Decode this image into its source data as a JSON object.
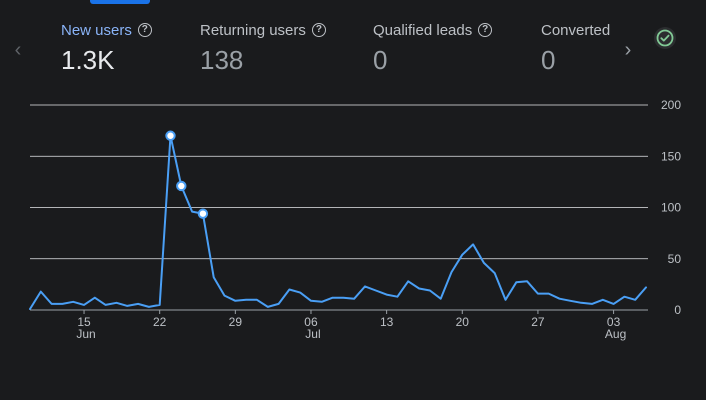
{
  "metrics": [
    {
      "label": "New users",
      "value": "1.3K",
      "active": true
    },
    {
      "label": "Returning users",
      "value": "138",
      "active": false
    },
    {
      "label": "Qualified leads",
      "value": "0",
      "active": false
    },
    {
      "label": "Converted",
      "value": "0",
      "active": false
    }
  ],
  "icons": {
    "prev": "chevron-left-icon",
    "next": "chevron-right-icon",
    "help": "help-circle-icon",
    "status": "check-circle-icon"
  },
  "colors": {
    "accent": "#1a73e8",
    "line": "#4a9ff5",
    "status_green": "#81c995"
  },
  "chart_data": {
    "type": "line",
    "x_start": "Jun 10",
    "x_end": "Aug 05",
    "x_tick_labels": [
      {
        "day": "15",
        "month": "Jun"
      },
      {
        "day": "22",
        "month": ""
      },
      {
        "day": "29",
        "month": ""
      },
      {
        "day": "06",
        "month": "Jul"
      },
      {
        "day": "13",
        "month": ""
      },
      {
        "day": "20",
        "month": ""
      },
      {
        "day": "27",
        "month": ""
      },
      {
        "day": "03",
        "month": "Aug"
      }
    ],
    "y_ticks": [
      0,
      50,
      100,
      150,
      200
    ],
    "ylim": [
      0,
      200
    ],
    "grid": true,
    "series": [
      {
        "values": [
          1,
          18,
          6,
          6,
          8,
          5,
          12,
          5,
          7,
          4,
          6,
          3,
          5,
          170,
          121,
          96,
          94,
          32,
          14,
          9,
          10,
          10,
          3,
          6,
          20,
          17,
          9,
          8,
          12,
          12,
          11,
          23,
          19,
          15,
          13,
          28,
          21,
          19,
          11,
          37,
          54,
          64,
          46,
          36,
          10,
          27,
          28,
          16,
          16,
          11,
          9,
          7,
          6,
          10,
          6,
          13,
          10,
          22
        ],
        "highlighted_indices": [
          13,
          14,
          16
        ]
      }
    ]
  }
}
